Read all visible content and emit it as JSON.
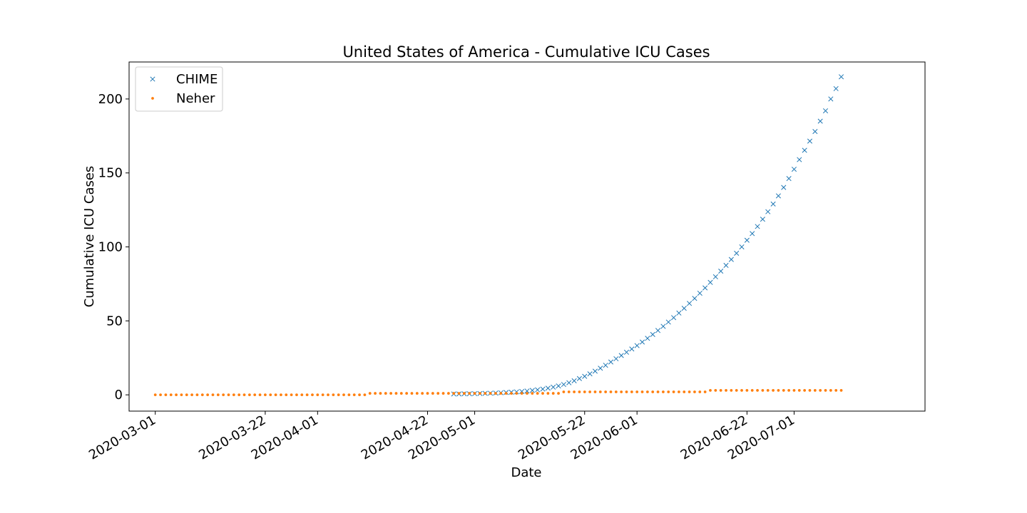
{
  "chart_data": {
    "type": "scatter",
    "title": "United States of America - Cumulative ICU Cases",
    "xlabel": "Date",
    "ylabel": "Cumulative ICU Cases",
    "x_type": "date",
    "xlim": [
      "2020-02-25",
      "2020-07-26"
    ],
    "ylim": [
      -11,
      225
    ],
    "x_ticks": [
      "2020-03-01",
      "2020-03-22",
      "2020-04-01",
      "2020-04-22",
      "2020-05-01",
      "2020-05-22",
      "2020-06-01",
      "2020-06-22",
      "2020-07-01"
    ],
    "y_ticks": [
      0,
      50,
      100,
      150,
      200
    ],
    "grid": false,
    "legend_position": "top-left",
    "series": [
      {
        "name": "CHIME",
        "marker": "x",
        "color": "#1f77b4",
        "start_date": "2020-04-27",
        "values": [
          0.6,
          0.6,
          0.7,
          0.7,
          0.8,
          0.9,
          1.0,
          1.1,
          1.2,
          1.4,
          1.6,
          1.8,
          2.0,
          2.3,
          2.6,
          3.0,
          3.4,
          3.9,
          4.5,
          5.2,
          6.0,
          7.0,
          8.2,
          9.5,
          11.0,
          12.5,
          14.2,
          16.0,
          18.0,
          20.0,
          22.2,
          24.4,
          26.6,
          28.8,
          31.0,
          33.3,
          35.7,
          38.2,
          40.8,
          43.5,
          46.3,
          49.2,
          52.2,
          55.3,
          58.5,
          61.8,
          65.2,
          68.7,
          72.3,
          76.0,
          79.8,
          83.6,
          87.5,
          91.5,
          95.7,
          100.0,
          104.5,
          109.0,
          113.8,
          118.7,
          123.8,
          129.0,
          134.5,
          140.2,
          146.2,
          152.5,
          159.0,
          165.3,
          171.5,
          178.0,
          185.0,
          192.0,
          200.0,
          207.0,
          215.0
        ]
      },
      {
        "name": "Neher",
        "marker": "o",
        "color": "#ff7f0e",
        "start_date": "2020-03-01",
        "values": [
          0,
          0,
          0,
          0,
          0,
          0,
          0,
          0,
          0,
          0,
          0,
          0,
          0,
          0,
          0,
          0,
          0,
          0,
          0,
          0,
          0,
          0,
          0,
          0,
          0,
          0,
          0,
          0,
          0,
          0,
          0,
          0,
          0,
          0,
          0,
          0,
          0,
          0,
          0,
          0,
          0,
          1,
          1,
          1,
          1,
          1,
          1,
          1,
          1,
          1,
          1,
          1,
          1,
          1,
          1,
          1,
          1,
          1,
          1,
          1,
          1,
          1,
          1,
          1,
          1,
          1,
          1,
          1,
          1,
          1,
          1,
          1,
          1,
          1,
          1,
          1,
          1,
          1,
          2,
          2,
          2,
          2,
          2,
          2,
          2,
          2,
          2,
          2,
          2,
          2,
          2,
          2,
          2,
          2,
          2,
          2,
          2,
          2,
          2,
          2,
          2,
          2,
          2,
          2,
          2,
          2,
          3,
          3,
          3,
          3,
          3,
          3,
          3,
          3,
          3,
          3,
          3,
          3,
          3,
          3,
          3,
          3,
          3,
          3,
          3,
          3,
          3,
          3,
          3,
          3,
          3,
          3
        ]
      }
    ]
  }
}
